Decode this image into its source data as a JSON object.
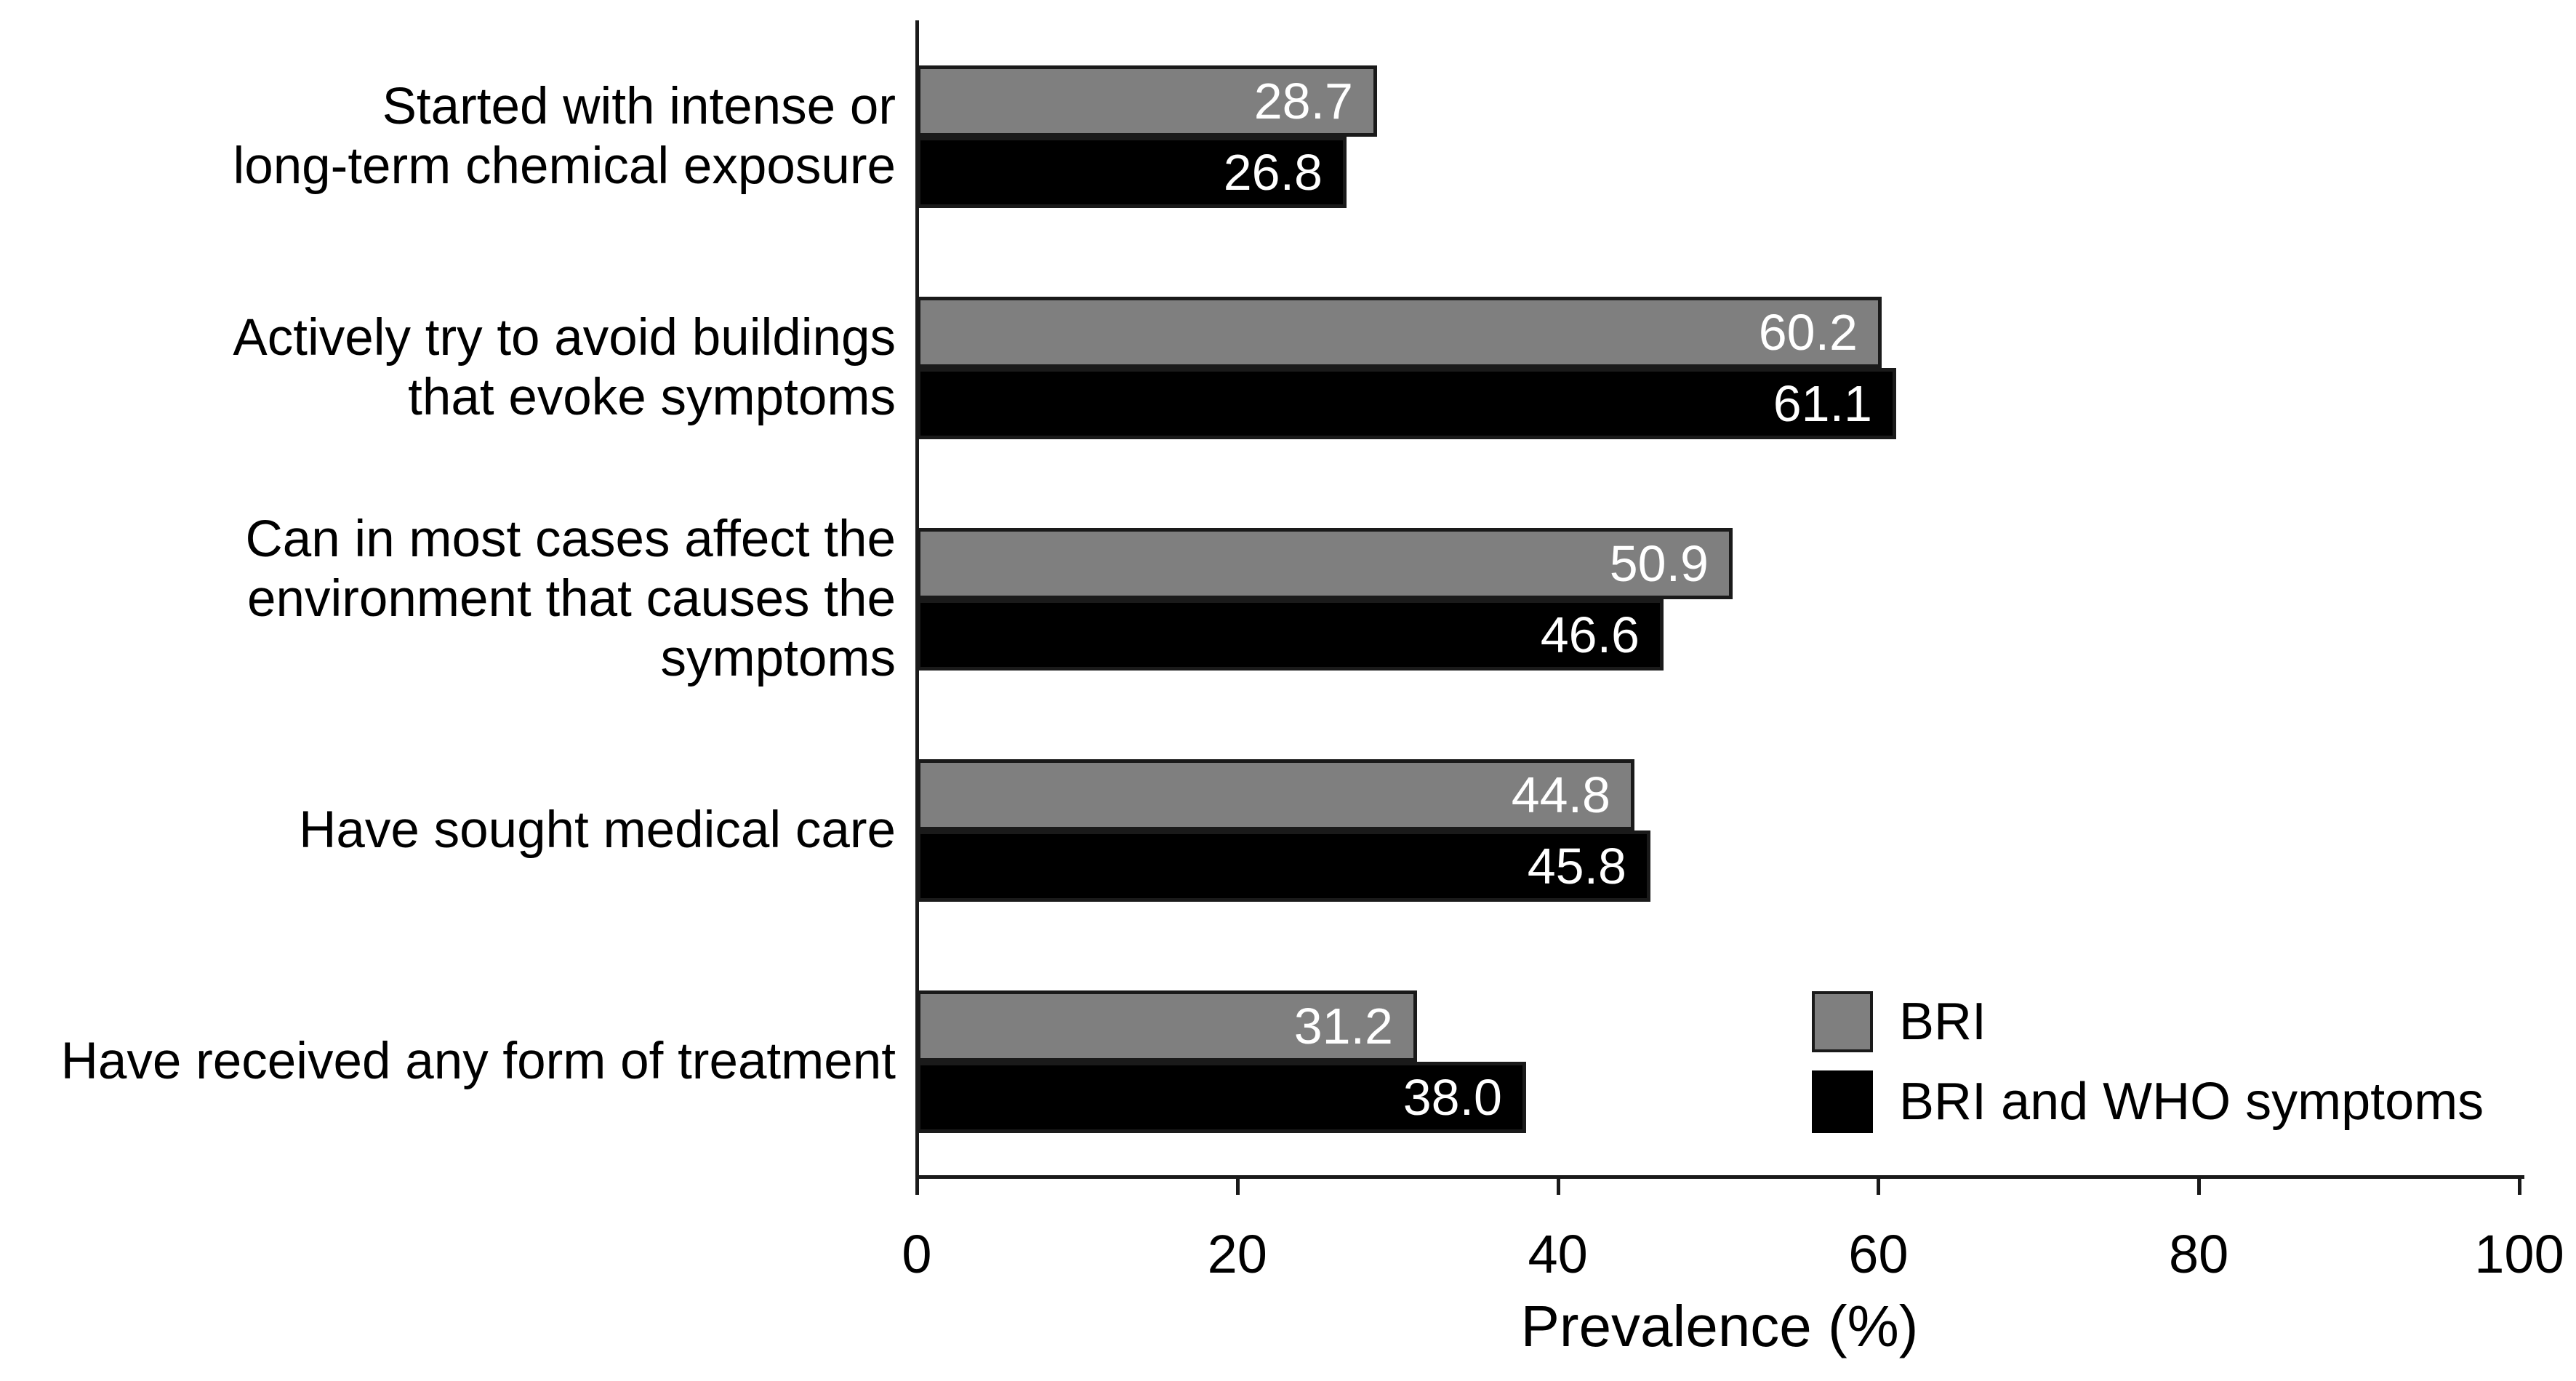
{
  "chart_data": {
    "type": "bar",
    "orientation": "horizontal",
    "xlabel": "Prevalence (%)",
    "xlim": [
      0,
      100
    ],
    "xticks": [
      0,
      20,
      40,
      60,
      80,
      100
    ],
    "grid": false,
    "legend_position": "inside-bottom-right",
    "value_labels": "inside-end, one decimal, white",
    "categories": [
      "Started with intense or\nlong-term chemical exposure",
      "Actively try to avoid buildings\nthat evoke symptoms",
      "Can in most cases affect the\nenvironment that causes the symptoms",
      "Have sought medical care",
      "Have received any form of treatment"
    ],
    "series": [
      {
        "name": "BRI",
        "color": "#7f7f7f",
        "values": [
          28.7,
          60.2,
          50.9,
          44.8,
          31.2
        ]
      },
      {
        "name": "BRI and WHO symptoms",
        "color": "#000000",
        "values": [
          26.8,
          61.1,
          46.6,
          45.8,
          38.0
        ]
      }
    ]
  },
  "colors": {
    "background": "#ffffff",
    "axis": "#1a1a1a",
    "bar_border": "#1a1a1a",
    "value_text": "#ffffff",
    "label_text": "#000000",
    "series_bri": "#7f7f7f",
    "series_bri_who": "#000000"
  }
}
